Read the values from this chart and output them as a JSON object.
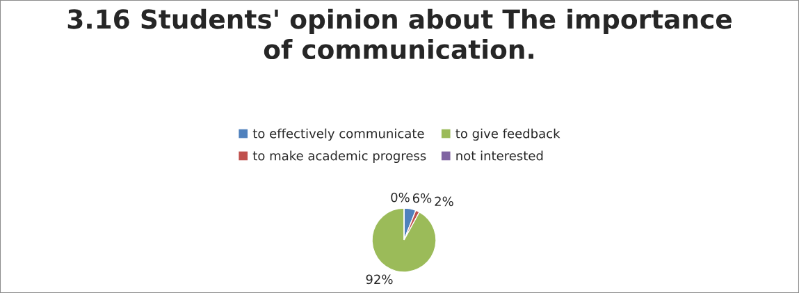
{
  "chart_data": {
    "type": "pie",
    "title": "3.16 Students' opinion about The importance\nof communication.",
    "categories": [
      "to effectively communicate",
      "to make academic progress",
      "to give feedback",
      "not interested"
    ],
    "values": [
      6,
      2,
      92,
      0
    ],
    "colors": [
      "#4f81bd",
      "#c0504d",
      "#9bbb59",
      "#8064a2"
    ],
    "value_labels": [
      "6%",
      "2%",
      "92%",
      "0%"
    ],
    "legend": "top"
  }
}
